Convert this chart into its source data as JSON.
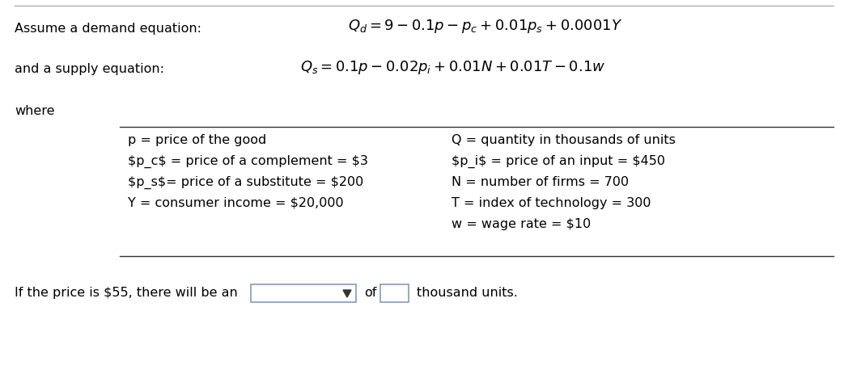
{
  "bg_color": "#ffffff",
  "title_line": "Assume a demand equation:",
  "supply_line": "and a supply equation:",
  "where_line": "where",
  "demand_eq": "$Q_d = 9 - 0.1p - p_c + 0.01p_s + 0.0001Y$",
  "supply_eq": "$Q_s = 0.1p - 0.02p_i + 0.01N + 0.01T - 0.1w$",
  "left_col": [
    "p = price of the good",
    "$p_c$ = price of a complement = $3",
    "$p_s$= price of a substitute = $200",
    "Y = consumer income = $20,000"
  ],
  "right_col": [
    "Q = quantity in thousands of units",
    "$p_i$ = price of an input = $450",
    "N = number of firms = 700",
    "T = index of technology = 300",
    "w = wage rate = $10"
  ],
  "bottom_text": "If the price is $55, there will be an",
  "bottom_suffix": "of",
  "bottom_end": "thousand units.",
  "font_size": 11.5,
  "eq_font_size": 13,
  "top_line_color": "#aaaaaa",
  "table_line_color": "#333333",
  "box_edge_color": "#8899bb",
  "arrow_color": "#333333"
}
